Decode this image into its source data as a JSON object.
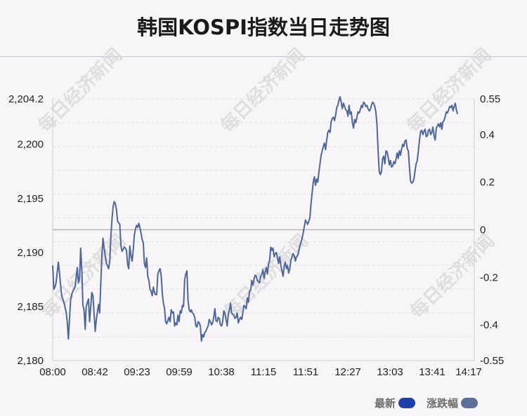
{
  "title": "韩国KOSPI指数当日走势图",
  "watermark": "每日经济新闻",
  "legend": [
    {
      "label": "最新",
      "color": "#1e3fa8"
    },
    {
      "label": "涨跌幅",
      "color": "#5b6f99"
    }
  ],
  "chart_data": {
    "type": "line",
    "series_color": "#4f6696",
    "x_ticks": [
      "08:00",
      "08:42",
      "09:23",
      "09:59",
      "10:38",
      "11:15",
      "11:51",
      "12:27",
      "13:03",
      "13:41",
      "14:17"
    ],
    "y_left_ticks": [
      "2,204.2",
      "2,200",
      "2,195",
      "2,190",
      "2,185",
      "2,180"
    ],
    "y_right_ticks": [
      "0.55",
      "0.4",
      "0.2",
      "0",
      "-0.2",
      "-0.4",
      "-0.55"
    ],
    "y_left_values": [
      2204.2,
      2200,
      2195,
      2190,
      2185,
      2180
    ],
    "y_right_values": [
      0.55,
      0.4,
      0.2,
      0,
      -0.2,
      -0.4,
      -0.55
    ],
    "ylim": [
      2180,
      2204.2
    ],
    "reference_level": 2192.1,
    "x_domain_minutes": [
      0,
      377
    ],
    "points": [
      [
        0,
        2188.8
      ],
      [
        1,
        2186.6
      ],
      [
        2,
        2186.8
      ],
      [
        3,
        2187.2
      ],
      [
        5,
        2189.1
      ],
      [
        6,
        2188.2
      ],
      [
        8,
        2186.0
      ],
      [
        10,
        2185.4
      ],
      [
        12,
        2184.5
      ],
      [
        13,
        2183.6
      ],
      [
        14,
        2182.0
      ],
      [
        16,
        2185.6
      ],
      [
        17,
        2186.1
      ],
      [
        18,
        2186.4
      ],
      [
        20,
        2186.8
      ],
      [
        22,
        2188.6
      ],
      [
        23,
        2187.2
      ],
      [
        24,
        2187.6
      ],
      [
        25,
        2190.4
      ],
      [
        26,
        2188.4
      ],
      [
        27,
        2185.1
      ],
      [
        28,
        2184.7
      ],
      [
        29,
        2182.9
      ],
      [
        30,
        2185.0
      ],
      [
        32,
        2185.7
      ],
      [
        33,
        2183.6
      ],
      [
        35,
        2186.3
      ],
      [
        36,
        2186.0
      ],
      [
        38,
        2182.7
      ],
      [
        39,
        2183.8
      ],
      [
        41,
        2185.2
      ],
      [
        42,
        2184.4
      ],
      [
        44,
        2189.7
      ],
      [
        45,
        2191.3
      ],
      [
        46,
        2190.4
      ],
      [
        48,
        2189.0
      ],
      [
        50,
        2188.5
      ],
      [
        51,
        2189.2
      ],
      [
        52,
        2191.5
      ],
      [
        53,
        2193.1
      ],
      [
        54,
        2194.2
      ],
      [
        55,
        2194.7
      ],
      [
        56,
        2194.5
      ],
      [
        57,
        2194.0
      ],
      [
        58,
        2192.9
      ],
      [
        60,
        2192.6
      ],
      [
        61,
        2190.6
      ],
      [
        62,
        2190.1
      ],
      [
        64,
        2190.5
      ],
      [
        65,
        2190.4
      ],
      [
        66,
        2190.2
      ],
      [
        67,
        2188.9
      ],
      [
        68,
        2188.5
      ],
      [
        69,
        2190.6
      ],
      [
        70,
        2189.7
      ],
      [
        71,
        2189.2
      ],
      [
        72,
        2190.2
      ],
      [
        73,
        2191.6
      ],
      [
        74,
        2192.2
      ],
      [
        75,
        2192.5
      ],
      [
        76,
        2192.3
      ],
      [
        77,
        2192.7
      ],
      [
        78,
        2192.3
      ],
      [
        79,
        2191.8
      ],
      [
        80,
        2191.2
      ],
      [
        81,
        2190.9
      ],
      [
        82,
        2189.0
      ],
      [
        83,
        2188.6
      ],
      [
        84,
        2189.5
      ],
      [
        85,
        2187.8
      ],
      [
        86,
        2187.4
      ],
      [
        87,
        2186.6
      ],
      [
        88,
        2186.4
      ],
      [
        89,
        2186.0
      ],
      [
        90,
        2186.8
      ],
      [
        91,
        2186.3
      ],
      [
        92,
        2186.1
      ],
      [
        93,
        2186.1
      ],
      [
        94,
        2188.0
      ],
      [
        95,
        2188.3
      ],
      [
        96,
        2188.5
      ],
      [
        97,
        2187.9
      ],
      [
        98,
        2186.2
      ],
      [
        99,
        2185.3
      ],
      [
        100,
        2184.8
      ],
      [
        101,
        2183.6
      ],
      [
        102,
        2183.4
      ],
      [
        103,
        2183.7
      ],
      [
        104,
        2184.0
      ],
      [
        105,
        2183.6
      ],
      [
        106,
        2184.7
      ],
      [
        107,
        2184.4
      ],
      [
        108,
        2184.5
      ],
      [
        109,
        2183.2
      ],
      [
        110,
        2183.5
      ],
      [
        111,
        2183.3
      ],
      [
        112,
        2184.2
      ],
      [
        113,
        2183.6
      ],
      [
        114,
        2184.6
      ],
      [
        115,
        2184.4
      ],
      [
        116,
        2185.1
      ],
      [
        117,
        2185.0
      ],
      [
        118,
        2187.5
      ],
      [
        119,
        2188.0
      ],
      [
        120,
        2188.3
      ],
      [
        121,
        2185.6
      ],
      [
        122,
        2184.7
      ],
      [
        123,
        2184.5
      ],
      [
        124,
        2184.7
      ],
      [
        125,
        2184.4
      ],
      [
        126,
        2184.3
      ],
      [
        127,
        2184.0
      ],
      [
        128,
        2183.2
      ],
      [
        129,
        2183.1
      ],
      [
        130,
        2183.6
      ],
      [
        131,
        2183.5
      ],
      [
        132,
        2183.2
      ],
      [
        133,
        2181.8
      ],
      [
        134,
        2182.4
      ],
      [
        135,
        2182.2
      ],
      [
        136,
        2182.6
      ],
      [
        137,
        2182.7
      ],
      [
        138,
        2183.0
      ],
      [
        139,
        2183.2
      ],
      [
        140,
        2183.8
      ],
      [
        141,
        2183.6
      ],
      [
        142,
        2183.3
      ],
      [
        143,
        2183.5
      ],
      [
        144,
        2184.0
      ],
      [
        145,
        2184.8
      ],
      [
        146,
        2183.7
      ],
      [
        147,
        2183.6
      ],
      [
        148,
        2184.0
      ],
      [
        149,
        2183.9
      ],
      [
        150,
        2183.3
      ],
      [
        151,
        2183.2
      ],
      [
        152,
        2183.6
      ],
      [
        153,
        2184.6
      ],
      [
        154,
        2184.4
      ],
      [
        155,
        2183.8
      ],
      [
        156,
        2183.2
      ],
      [
        157,
        2184.3
      ],
      [
        158,
        2184.7
      ],
      [
        159,
        2185.3
      ],
      [
        160,
        2184.4
      ],
      [
        161,
        2184.3
      ],
      [
        162,
        2184.2
      ],
      [
        163,
        2183.9
      ],
      [
        164,
        2184.0
      ],
      [
        165,
        2184.4
      ],
      [
        166,
        2183.5
      ],
      [
        167,
        2183.8
      ],
      [
        168,
        2184.0
      ],
      [
        169,
        2183.8
      ],
      [
        170,
        2184.4
      ],
      [
        171,
        2185.1
      ],
      [
        172,
        2185.0
      ],
      [
        173,
        2184.8
      ],
      [
        174,
        2185.8
      ],
      [
        175,
        2185.4
      ],
      [
        176,
        2186.4
      ],
      [
        177,
        2186.5
      ],
      [
        178,
        2187.4
      ],
      [
        179,
        2187.0
      ],
      [
        180,
        2187.5
      ],
      [
        181,
        2187.9
      ],
      [
        182,
        2187.8
      ],
      [
        183,
        2187.4
      ],
      [
        184,
        2187.3
      ],
      [
        185,
        2187.2
      ],
      [
        186,
        2187.8
      ],
      [
        187,
        2188.0
      ],
      [
        188,
        2188.4
      ],
      [
        189,
        2187.6
      ],
      [
        190,
        2188.2
      ],
      [
        191,
        2188.6
      ],
      [
        192,
        2188.0
      ],
      [
        193,
        2188.9
      ],
      [
        194,
        2189.3
      ],
      [
        195,
        2190.5
      ],
      [
        196,
        2190.2
      ],
      [
        197,
        2190.4
      ],
      [
        198,
        2189.6
      ],
      [
        199,
        2189.9
      ],
      [
        200,
        2190.0
      ],
      [
        201,
        2189.5
      ],
      [
        202,
        2189.0
      ],
      [
        203,
        2189.6
      ],
      [
        204,
        2188.8
      ],
      [
        205,
        2188.3
      ],
      [
        206,
        2187.8
      ],
      [
        207,
        2188.7
      ],
      [
        208,
        2189.1
      ],
      [
        209,
        2188.5
      ],
      [
        210,
        2188.8
      ],
      [
        211,
        2188.1
      ],
      [
        212,
        2188.5
      ],
      [
        213,
        2189.3
      ],
      [
        214,
        2189.6
      ],
      [
        215,
        2189.9
      ],
      [
        216,
        2189.7
      ],
      [
        217,
        2189.2
      ],
      [
        218,
        2189.6
      ],
      [
        219,
        2189.7
      ],
      [
        220,
        2190.1
      ],
      [
        221,
        2190.6
      ],
      [
        222,
        2190.9
      ],
      [
        223,
        2191.3
      ],
      [
        224,
        2191.8
      ],
      [
        225,
        2192.4
      ],
      [
        226,
        2193.0
      ],
      [
        227,
        2192.8
      ],
      [
        228,
        2192.6
      ],
      [
        229,
        2192.9
      ],
      [
        230,
        2193.2
      ],
      [
        231,
        2194.5
      ],
      [
        232,
        2195.5
      ],
      [
        233,
        2196.5
      ],
      [
        234,
        2197.0
      ],
      [
        235,
        2196.2
      ],
      [
        236,
        2196.8
      ],
      [
        237,
        2196.5
      ],
      [
        238,
        2197.4
      ],
      [
        239,
        2198.2
      ],
      [
        240,
        2199.0
      ],
      [
        241,
        2199.4
      ],
      [
        242,
        2199.8
      ],
      [
        243,
        2200.1
      ],
      [
        244,
        2199.5
      ],
      [
        245,
        2200.4
      ],
      [
        246,
        2201.1
      ],
      [
        247,
        2201.3
      ],
      [
        248,
        2201.1
      ],
      [
        249,
        2202.1
      ],
      [
        250,
        2202.4
      ],
      [
        251,
        2202.5
      ],
      [
        252,
        2202.2
      ],
      [
        253,
        2202.7
      ],
      [
        254,
        2203.4
      ],
      [
        255,
        2203.6
      ],
      [
        256,
        2204.1
      ],
      [
        257,
        2204.4
      ],
      [
        258,
        2203.9
      ],
      [
        259,
        2203.3
      ],
      [
        260,
        2203.8
      ],
      [
        261,
        2203.5
      ],
      [
        262,
        2203.2
      ],
      [
        263,
        2203.1
      ],
      [
        264,
        2202.6
      ],
      [
        265,
        2203.6
      ],
      [
        266,
        2202.8
      ],
      [
        267,
        2203.0
      ],
      [
        268,
        2202.0
      ],
      [
        269,
        2201.5
      ],
      [
        270,
        2202.3
      ],
      [
        271,
        2202.0
      ],
      [
        272,
        2202.5
      ],
      [
        273,
        2203.0
      ],
      [
        274,
        2202.9
      ],
      [
        275,
        2203.2
      ],
      [
        276,
        2203.6
      ],
      [
        277,
        2203.4
      ],
      [
        278,
        2203.9
      ],
      [
        279,
        2203.8
      ],
      [
        280,
        2203.5
      ],
      [
        281,
        2203.6
      ],
      [
        282,
        2203.3
      ],
      [
        283,
        2203.1
      ],
      [
        284,
        2203.2
      ],
      [
        285,
        2203.6
      ],
      [
        286,
        2203.9
      ],
      [
        287,
        2203.8
      ],
      [
        288,
        2203.5
      ],
      [
        289,
        2203.0
      ],
      [
        290,
        2201.8
      ],
      [
        291,
        2199.4
      ],
      [
        292,
        2197.5
      ],
      [
        293,
        2197.2
      ],
      [
        294,
        2197.5
      ],
      [
        295,
        2198.7
      ],
      [
        296,
        2198.9
      ],
      [
        297,
        2198.2
      ],
      [
        298,
        2199.4
      ],
      [
        299,
        2199.3
      ],
      [
        300,
        2198.8
      ],
      [
        301,
        2198.1
      ],
      [
        302,
        2198.5
      ],
      [
        303,
        2197.9
      ],
      [
        304,
        2198.0
      ],
      [
        305,
        2198.4
      ],
      [
        306,
        2198.2
      ],
      [
        307,
        2198.6
      ],
      [
        308,
        2199.2
      ],
      [
        309,
        2198.7
      ],
      [
        310,
        2199.4
      ],
      [
        311,
        2199.0
      ],
      [
        312,
        2199.6
      ],
      [
        313,
        2200.0
      ],
      [
        314,
        2199.8
      ],
      [
        315,
        2200.3
      ],
      [
        316,
        2200.4
      ],
      [
        317,
        2199.6
      ],
      [
        318,
        2199.4
      ],
      [
        319,
        2197.9
      ],
      [
        320,
        2196.6
      ],
      [
        321,
        2196.4
      ],
      [
        322,
        2196.5
      ],
      [
        323,
        2196.8
      ],
      [
        324,
        2197.5
      ],
      [
        325,
        2198.2
      ],
      [
        326,
        2198.5
      ],
      [
        327,
        2199.4
      ],
      [
        328,
        2200.4
      ],
      [
        329,
        2201.2
      ],
      [
        330,
        2201.3
      ],
      [
        331,
        2200.9
      ],
      [
        332,
        2201.2
      ],
      [
        333,
        2201.4
      ],
      [
        334,
        2200.7
      ],
      [
        335,
        2200.8
      ],
      [
        336,
        2201.3
      ],
      [
        337,
        2201.4
      ],
      [
        338,
        2200.9
      ],
      [
        339,
        2201.1
      ],
      [
        340,
        2201.6
      ],
      [
        341,
        2200.8
      ],
      [
        342,
        2200.4
      ],
      [
        343,
        2201.5
      ],
      [
        344,
        2201.7
      ],
      [
        345,
        2201.9
      ],
      [
        346,
        2201.6
      ],
      [
        347,
        2202.0
      ],
      [
        348,
        2201.4
      ],
      [
        349,
        2202.1
      ],
      [
        350,
        2202.2
      ],
      [
        351,
        2202.6
      ],
      [
        352,
        2203.0
      ],
      [
        353,
        2202.9
      ],
      [
        354,
        2203.2
      ],
      [
        355,
        2203.5
      ],
      [
        356,
        2203.4
      ],
      [
        357,
        2203.6
      ],
      [
        358,
        2203.1
      ],
      [
        359,
        2203.5
      ],
      [
        360,
        2203.8
      ],
      [
        361,
        2203.2
      ],
      [
        362,
        2202.8
      ]
    ]
  }
}
